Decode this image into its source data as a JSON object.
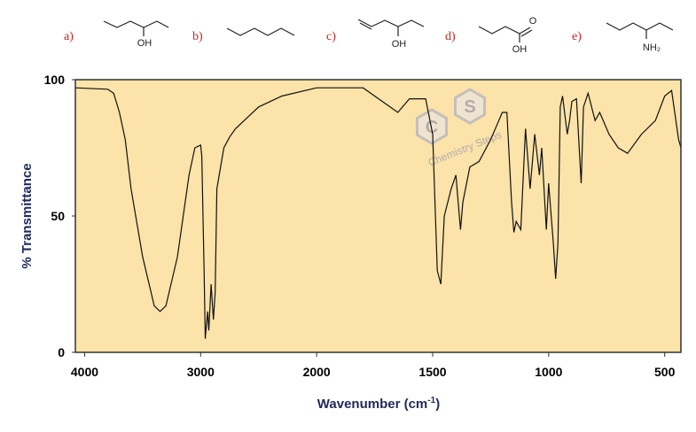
{
  "molecules": [
    {
      "letter": "a)",
      "atoms": [
        "OH"
      ]
    },
    {
      "letter": "b)",
      "atoms": []
    },
    {
      "letter": "c)",
      "atoms": [
        "OH"
      ]
    },
    {
      "letter": "d)",
      "atoms": [
        "O",
        "OH"
      ]
    },
    {
      "letter": "e)",
      "atoms": [
        "NH₂"
      ]
    }
  ],
  "chart_data": {
    "type": "line",
    "x_label": [
      "Wavenumber (cm",
      "-1",
      ")"
    ],
    "y_label": "% Transmittance",
    "watermark": {
      "letters": [
        "C",
        "S"
      ],
      "text": "Chemistry Steps"
    },
    "xlim": [
      4080,
      430
    ],
    "xticks": [
      4000,
      3000,
      2000,
      1500,
      1000,
      500
    ],
    "ylim": [
      0,
      100
    ],
    "yticks": [
      0,
      50,
      100
    ],
    "color": "#111111",
    "background": "#fbe3a9",
    "x": [
      4080,
      3800,
      3750,
      3700,
      3650,
      3600,
      3500,
      3400,
      3350,
      3300,
      3200,
      3100,
      3050,
      3000,
      2990,
      2970,
      2960,
      2940,
      2930,
      2910,
      2890,
      2875,
      2860,
      2800,
      2750,
      2700,
      2500,
      2300,
      2000,
      1800,
      1700,
      1650,
      1600,
      1530,
      1500,
      1480,
      1465,
      1450,
      1420,
      1400,
      1380,
      1370,
      1340,
      1300,
      1250,
      1200,
      1180,
      1160,
      1150,
      1140,
      1120,
      1100,
      1080,
      1060,
      1040,
      1030,
      1010,
      1000,
      980,
      970,
      960,
      950,
      940,
      920,
      910,
      900,
      880,
      860,
      850,
      830,
      800,
      780,
      740,
      700,
      660,
      600,
      540,
      500,
      470,
      440,
      430
    ],
    "values": [
      97,
      96.5,
      95,
      88,
      78,
      60,
      35,
      17,
      15,
      17,
      35,
      65,
      75,
      76,
      72,
      30,
      5,
      15,
      8,
      25,
      12,
      22,
      60,
      75,
      79,
      82,
      90,
      94,
      97,
      97,
      91,
      88,
      93,
      93,
      80,
      30,
      25,
      50,
      60,
      65,
      45,
      55,
      68,
      70,
      78,
      88,
      88,
      55,
      44,
      48,
      45,
      82,
      60,
      80,
      65,
      75,
      45,
      62,
      40,
      27,
      40,
      90,
      94,
      80,
      85,
      92,
      93,
      62,
      90,
      95,
      85,
      88,
      80,
      75,
      73,
      80,
      85,
      94,
      96,
      78,
      75
    ]
  }
}
